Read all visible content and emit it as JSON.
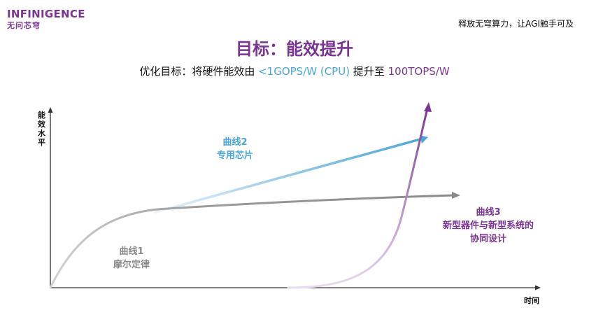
{
  "header": {
    "logo_text": "INFINIGENCE",
    "logo_subtext": "无问芯穹",
    "tagline": "释放无穹算力，让AGI触手可及"
  },
  "title": "目标：能效提升",
  "subtitle": {
    "prefix": "优化目标：将硬件能效由 ",
    "from_value": "<1GOPS/W (CPU)",
    "middle": " 提升至 ",
    "to_value": "100TOPS/W"
  },
  "axes": {
    "y_label": "能效水平",
    "x_label": "时间"
  },
  "curves": [
    {
      "id": "curve1",
      "title": "曲线1",
      "desc_lines": [
        "摩尔定律"
      ],
      "color": "#8a8a8a"
    },
    {
      "id": "curve2",
      "title": "曲线2",
      "desc_lines": [
        "专用芯片"
      ],
      "color": "#4aa5d8"
    },
    {
      "id": "curve3",
      "title": "曲线3",
      "desc_lines": [
        "新型器件与新型系统的",
        "协同设计"
      ],
      "color": "#7a3592"
    }
  ]
}
